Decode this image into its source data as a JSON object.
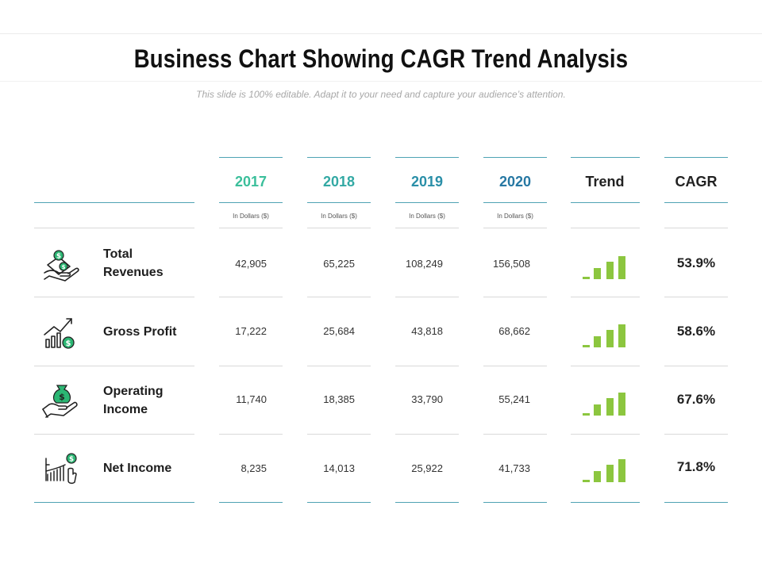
{
  "title": "Business Chart Showing CAGR Trend Analysis",
  "subtitle": "This slide is 100% editable. Adapt it to your need and capture your audience’s attention.",
  "table": {
    "columns": [
      {
        "label": "2017",
        "unit": "In Dollars ($)"
      },
      {
        "label": "2018",
        "unit": "In Dollars ($)"
      },
      {
        "label": "2019",
        "unit": "In Dollars ($)"
      },
      {
        "label": "2020",
        "unit": "In Dollars ($)"
      }
    ],
    "trend_label": "Trend",
    "cagr_label": "CAGR",
    "rows": [
      {
        "label_line1": "Total",
        "label_line2": "Revenues",
        "icon": "money-hand-icon",
        "values": [
          "42,905",
          "65,225",
          "108,249",
          "156,508"
        ],
        "cagr": "53.9%"
      },
      {
        "label_line1": "Gross Profit",
        "label_line2": "",
        "icon": "growth-chart-dollar-icon",
        "values": [
          "17,222",
          "25,684",
          "43,818",
          "68,662"
        ],
        "cagr": "58.6%"
      },
      {
        "label_line1": "Operating",
        "label_line2": "Income",
        "icon": "money-bag-hand-icon",
        "values": [
          "11,740",
          "18,385",
          "33,790",
          "55,241"
        ],
        "cagr": "67.6%"
      },
      {
        "label_line1": "Net Income",
        "label_line2": "",
        "icon": "bar-chart-dollar-icon",
        "values": [
          "8,235",
          "14,013",
          "25,922",
          "41,733"
        ],
        "cagr": "71.8%"
      }
    ]
  },
  "colors": {
    "year_2017": "#3bbf9b",
    "year_2018": "#33a9a4",
    "year_2019": "#2a8fa8",
    "year_2020": "#2778a3",
    "trend_bars": "#8cc63f",
    "icon_accent": "#2bb673",
    "header_rule": "#4fa3b4"
  }
}
